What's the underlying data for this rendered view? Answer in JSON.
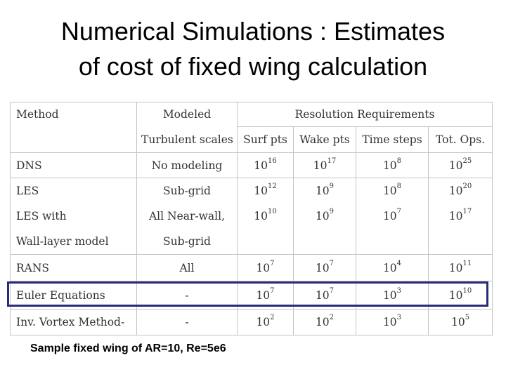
{
  "slide": {
    "title_line1": "Numerical Simulations  : Estimates",
    "title_line2": "of cost of fixed wing calculation",
    "note": "Sample fixed wing of AR=10, Re=5e6"
  },
  "table": {
    "h_method": "Method",
    "h_modeled": "Modeled",
    "h_resolution": "Resolution Requirements",
    "h_turb": "Turbulent scales",
    "h_surf": "Surf pts",
    "h_wake": "Wake pts",
    "h_time": "Time steps",
    "h_ops": "Tot. Ops.",
    "rows": [
      {
        "method": "DNS",
        "model": "No modeling",
        "surf": "16",
        "wake": "17",
        "time": "8",
        "ops": "25"
      },
      {
        "method": "LES",
        "model": "Sub-grid",
        "surf": "12",
        "wake": "9",
        "time": "8",
        "ops": "20"
      },
      {
        "method": "LES with",
        "model": "All Near-wall,",
        "surf": "10",
        "wake": "9",
        "time": "7",
        "ops": "17"
      },
      {
        "method": "Wall-layer model",
        "model": "Sub-grid"
      },
      {
        "method": "RANS",
        "model": "All",
        "surf": "7",
        "wake": "7",
        "time": "4",
        "ops": "11"
      },
      {
        "method": "Euler Equations",
        "model": "-",
        "surf": "7",
        "wake": "7",
        "time": "3",
        "ops": "10"
      },
      {
        "method": "Inv. Vortex Method-",
        "model": "-",
        "surf": "2",
        "wake": "2",
        "time": "3",
        "ops": "5"
      }
    ],
    "base": "10"
  }
}
